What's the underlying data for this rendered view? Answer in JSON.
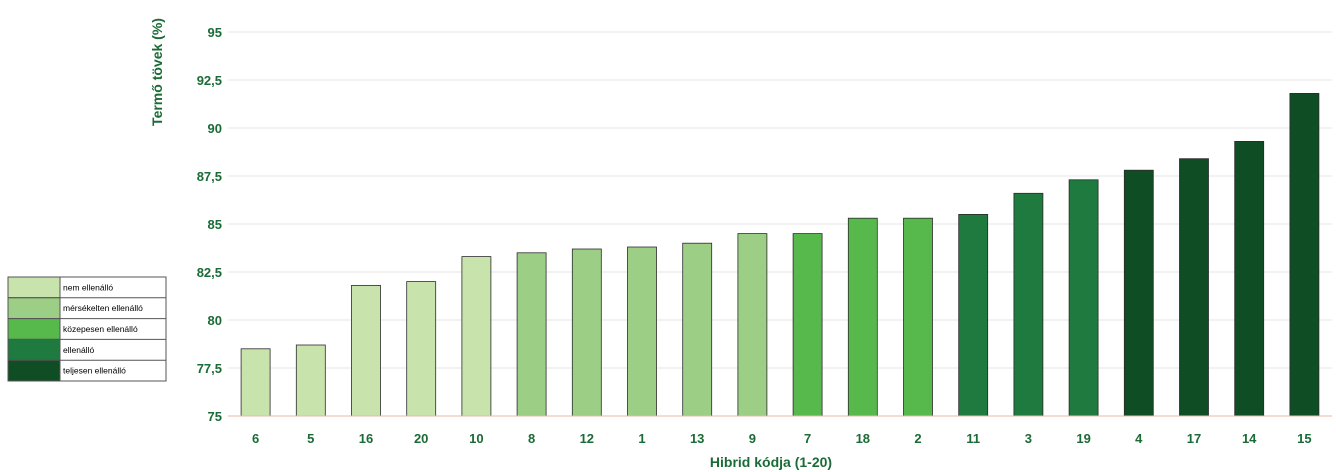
{
  "chart_data": {
    "type": "bar",
    "title": "",
    "xlabel": "Hibrid kódja (1-20)",
    "ylabel": "Termő tövek (%)",
    "ylim": [
      75,
      95
    ],
    "yticks": [
      "75",
      "77,5",
      "80",
      "82,5",
      "85",
      "87,5",
      "90",
      "92,5",
      "95"
    ],
    "ytick_values": [
      75,
      77.5,
      80,
      82.5,
      85,
      87.5,
      90,
      92.5,
      95
    ],
    "grid": true,
    "categories": [
      "6",
      "5",
      "16",
      "20",
      "10",
      "8",
      "12",
      "1",
      "13",
      "9",
      "7",
      "18",
      "2",
      "11",
      "3",
      "19",
      "4",
      "17",
      "14",
      "15"
    ],
    "values": [
      78.5,
      78.7,
      81.8,
      82.0,
      83.3,
      83.5,
      83.7,
      83.8,
      84.0,
      84.5,
      84.5,
      85.3,
      85.3,
      85.5,
      86.6,
      87.3,
      87.8,
      88.4,
      89.3,
      91.8
    ],
    "groups": [
      0,
      0,
      0,
      0,
      0,
      1,
      1,
      1,
      1,
      1,
      2,
      2,
      2,
      3,
      3,
      3,
      4,
      4,
      4,
      4
    ],
    "legend_position": "left",
    "legend": [
      {
        "label": "nem ellenálló",
        "color": "#c9e3ad"
      },
      {
        "label": "mérsékelten ellenálló",
        "color": "#9ccf85"
      },
      {
        "label": "közepesen ellenálló",
        "color": "#57b84b"
      },
      {
        "label": "ellenálló",
        "color": "#1e7a3e"
      },
      {
        "label": "teljesen ellenálló",
        "color": "#0f4d24"
      }
    ]
  }
}
